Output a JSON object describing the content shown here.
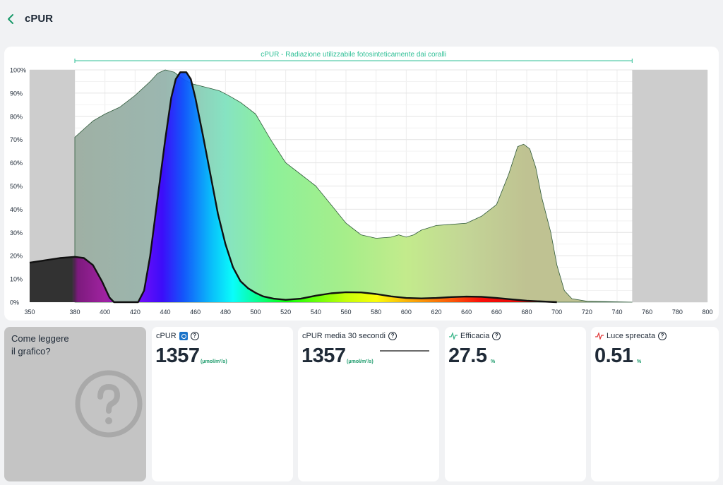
{
  "header": {
    "title": "cPUR"
  },
  "chart_data": {
    "type": "area",
    "title": "cPUR - Radiazione utilizzabile fotosinteticamente dai coralli",
    "x_ticks": [
      350,
      380,
      400,
      420,
      440,
      460,
      480,
      500,
      520,
      540,
      560,
      580,
      600,
      620,
      640,
      660,
      680,
      700,
      720,
      740,
      760,
      780,
      800
    ],
    "y_ticks": [
      "0%",
      "10%",
      "20%",
      "30%",
      "40%",
      "50%",
      "60%",
      "70%",
      "80%",
      "90%",
      "100%"
    ],
    "xlim": [
      350,
      800
    ],
    "ylim": [
      0,
      100
    ],
    "cpur_range": [
      380,
      750
    ],
    "grid": true,
    "series": [
      {
        "values": [
          [
            380,
            0
          ],
          [
            380,
            71
          ],
          [
            392,
            78
          ],
          [
            400,
            81
          ],
          [
            410,
            84
          ],
          [
            420,
            89
          ],
          [
            430,
            95
          ],
          [
            435,
            98.5
          ],
          [
            440,
            100
          ],
          [
            446,
            99
          ],
          [
            452,
            96
          ],
          [
            458,
            94
          ],
          [
            464,
            93
          ],
          [
            470,
            92
          ],
          [
            476,
            91
          ],
          [
            482,
            89
          ],
          [
            490,
            86
          ],
          [
            500,
            81
          ],
          [
            510,
            70
          ],
          [
            520,
            60
          ],
          [
            530,
            55
          ],
          [
            540,
            50
          ],
          [
            550,
            42
          ],
          [
            560,
            34
          ],
          [
            570,
            29
          ],
          [
            580,
            27.5
          ],
          [
            590,
            28
          ],
          [
            595,
            29
          ],
          [
            600,
            28
          ],
          [
            605,
            29
          ],
          [
            610,
            31
          ],
          [
            620,
            33
          ],
          [
            630,
            33.5
          ],
          [
            640,
            34
          ],
          [
            650,
            37
          ],
          [
            660,
            42
          ],
          [
            668,
            55
          ],
          [
            674,
            67
          ],
          [
            678,
            68
          ],
          [
            682,
            66
          ],
          [
            686,
            58
          ],
          [
            690,
            45
          ],
          [
            696,
            30
          ],
          [
            700,
            16
          ],
          [
            705,
            5
          ],
          [
            710,
            1.5
          ],
          [
            720,
            0.4
          ],
          [
            750,
            0
          ],
          [
            750,
            0
          ]
        ]
      },
      {
        "values": [
          [
            350,
            17
          ],
          [
            360,
            18
          ],
          [
            370,
            19
          ],
          [
            380,
            19.5
          ],
          [
            386,
            19
          ],
          [
            392,
            16
          ],
          [
            398,
            9
          ],
          [
            403,
            2
          ],
          [
            406,
            0
          ],
          [
            422,
            0
          ],
          [
            426,
            5
          ],
          [
            430,
            20
          ],
          [
            435,
            45
          ],
          [
            440,
            70
          ],
          [
            444,
            88
          ],
          [
            447,
            96
          ],
          [
            450,
            99
          ],
          [
            454,
            99
          ],
          [
            457,
            96
          ],
          [
            460,
            88
          ],
          [
            465,
            72
          ],
          [
            470,
            55
          ],
          [
            475,
            38
          ],
          [
            480,
            25
          ],
          [
            485,
            15
          ],
          [
            490,
            9
          ],
          [
            495,
            6
          ],
          [
            500,
            4
          ],
          [
            505,
            2.5
          ],
          [
            512,
            1.5
          ],
          [
            520,
            1
          ],
          [
            530,
            1.5
          ],
          [
            540,
            2.8
          ],
          [
            550,
            3.8
          ],
          [
            560,
            4.3
          ],
          [
            570,
            4.2
          ],
          [
            580,
            3.5
          ],
          [
            590,
            2.5
          ],
          [
            600,
            1.8
          ],
          [
            610,
            1.6
          ],
          [
            620,
            1.8
          ],
          [
            630,
            2.2
          ],
          [
            640,
            2.4
          ],
          [
            650,
            2.3
          ],
          [
            660,
            1.8
          ],
          [
            670,
            1.2
          ],
          [
            680,
            0.6
          ],
          [
            690,
            0.3
          ],
          [
            700,
            0
          ]
        ]
      }
    ]
  },
  "help": {
    "label": "Come leggere il grafico?",
    "icon": "question-circle-icon"
  },
  "metrics": [
    {
      "title": "cPUR",
      "value": "1357",
      "unit": "(μmol/m²/s)",
      "icon": "cpur-badge-icon"
    },
    {
      "title": "cPUR media 30 secondi",
      "value": "1357",
      "unit": "(μmol/m²/s)"
    },
    {
      "title": "Efficacia",
      "value": "27.5",
      "unit": "%",
      "icon": "pulse-icon",
      "icon_color": "#3bb58a"
    },
    {
      "title": "Luce sprecata",
      "value": "0.51",
      "unit": "%",
      "icon": "pulse-icon",
      "icon_color": "#e23b3b"
    }
  ],
  "colors": {
    "accent": "#1a9a6a",
    "background": "#f1f2f4",
    "card": "#ffffff",
    "excluded_region": "#cdcdcd"
  }
}
